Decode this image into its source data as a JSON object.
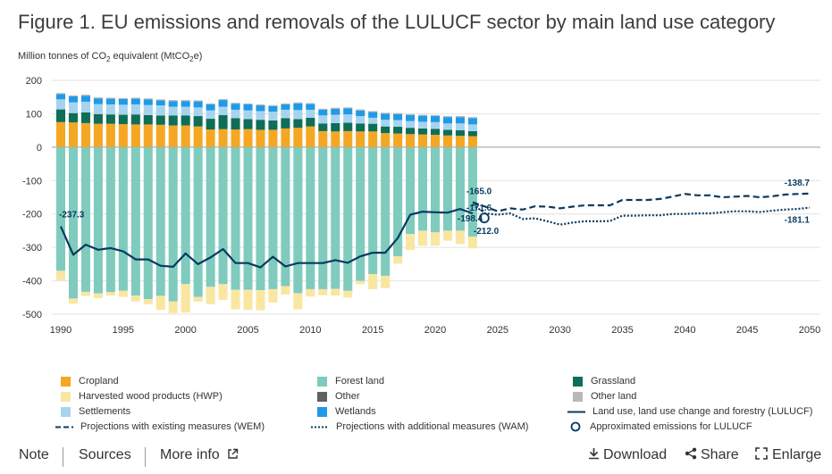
{
  "title": "Figure 1. EU emissions and removals of the LULUCF sector by main land use category",
  "y_axis_label": {
    "prefix": "Million tonnes of CO",
    "sub1": "2",
    "mid": " equivalent (MtCO",
    "sub2": "2",
    "suffix": "e)"
  },
  "colors": {
    "cropland": "#f5a623",
    "forest": "#7fcbbe",
    "grassland": "#0e6e58",
    "hwp": "#f9e6a0",
    "other": "#606060",
    "other_land": "#b8b8b8",
    "settlements": "#a6d4ef",
    "wetlands": "#1f9ae8",
    "line": "#0a3a5e",
    "grid": "#e2e2e2"
  },
  "chart_data": {
    "type": "bar",
    "title": "EU emissions and removals of the LULUCF sector by main land use category",
    "ylabel": "Million tonnes of CO2 equivalent (MtCO2e)",
    "ylim": [
      -500,
      200
    ],
    "yticks": [
      "200",
      "100",
      "0",
      "-100",
      "-200",
      "-300",
      "-400",
      "-500"
    ],
    "ytick_values": [
      200,
      100,
      0,
      -100,
      -200,
      -300,
      -400,
      -500
    ],
    "xlim": [
      1990,
      2050
    ],
    "xticks": [
      "1990",
      "1995",
      "2000",
      "2005",
      "2010",
      "2015",
      "2020",
      "2025",
      "2030",
      "2035",
      "2040",
      "2045",
      "2050"
    ],
    "xtick_values": [
      1990,
      1995,
      2000,
      2005,
      2010,
      2015,
      2020,
      2025,
      2030,
      2035,
      2040,
      2045,
      2050
    ],
    "years": [
      1990,
      1991,
      1992,
      1993,
      1994,
      1995,
      1996,
      1997,
      1998,
      1999,
      2000,
      2001,
      2002,
      2003,
      2004,
      2005,
      2006,
      2007,
      2008,
      2009,
      2010,
      2011,
      2012,
      2013,
      2014,
      2015,
      2016,
      2017,
      2018,
      2019,
      2020,
      2021,
      2022,
      2023
    ],
    "stacked_series": {
      "cropland": [
        75,
        74,
        72,
        70,
        70,
        69,
        68,
        68,
        67,
        65,
        65,
        62,
        53,
        54,
        53,
        54,
        52,
        52,
        56,
        58,
        62,
        48,
        47,
        48,
        47,
        47,
        42,
        41,
        39,
        38,
        37,
        35,
        34,
        33
      ],
      "grassland": [
        38,
        28,
        32,
        29,
        28,
        28,
        30,
        28,
        28,
        30,
        30,
        31,
        32,
        42,
        34,
        30,
        30,
        28,
        31,
        26,
        26,
        23,
        25,
        25,
        24,
        23,
        20,
        20,
        19,
        18,
        18,
        17,
        17,
        15
      ],
      "settlements": [
        30,
        32,
        32,
        30,
        30,
        30,
        30,
        30,
        30,
        26,
        26,
        26,
        25,
        25,
        25,
        26,
        26,
        26,
        25,
        27,
        24,
        24,
        25,
        25,
        22,
        18,
        20,
        20,
        20,
        20,
        20,
        19,
        20,
        20
      ],
      "wetlands": [
        16,
        18,
        18,
        17,
        17,
        17,
        17,
        17,
        15,
        17,
        17,
        18,
        18,
        20,
        18,
        18,
        17,
        17,
        16,
        20,
        17,
        17,
        18,
        18,
        17,
        17,
        18,
        18,
        18,
        18,
        18,
        19,
        19,
        19
      ],
      "other_land": [
        3,
        3,
        3,
        3,
        3,
        3,
        3,
        3,
        3,
        3,
        3,
        3,
        3,
        3,
        3,
        3,
        3,
        3,
        3,
        3,
        3,
        3,
        3,
        3,
        3,
        3,
        3,
        3,
        3,
        3,
        3,
        3,
        3,
        3
      ],
      "forest": [
        -370,
        -453,
        -433,
        -438,
        -434,
        -430,
        -444,
        -455,
        -445,
        -462,
        -410,
        -448,
        -418,
        -410,
        -427,
        -427,
        -428,
        -425,
        -416,
        -437,
        -425,
        -425,
        -424,
        -430,
        -400,
        -380,
        -385,
        -327,
        -260,
        -250,
        -255,
        -250,
        -250,
        -268
      ],
      "hwp": [
        -28,
        -15,
        -12,
        -14,
        -10,
        -18,
        -18,
        -15,
        -42,
        -35,
        -85,
        -14,
        -52,
        -47,
        -58,
        -60,
        -60,
        -40,
        -25,
        -48,
        -22,
        -18,
        -20,
        -20,
        -10,
        -45,
        -37,
        -22,
        -48,
        -45,
        -40,
        -30,
        -40,
        -35
      ]
    },
    "series": [
      {
        "name": "Land use, land use change and forestry (LULUCF)",
        "years": [
          1990,
          1991,
          1992,
          1993,
          1994,
          1995,
          1996,
          1997,
          1998,
          1999,
          2000,
          2001,
          2002,
          2003,
          2004,
          2005,
          2006,
          2007,
          2008,
          2009,
          2010,
          2011,
          2012,
          2013,
          2014,
          2015,
          2016,
          2017,
          2018,
          2019,
          2020,
          2021,
          2022,
          2023
        ],
        "values": [
          -237.3,
          -322,
          -292,
          -307,
          -302,
          -312,
          -336,
          -336,
          -355,
          -358,
          -318,
          -350,
          -330,
          -305,
          -347,
          -347,
          -360,
          -328,
          -357,
          -347,
          -347,
          -347,
          -338,
          -346,
          -327,
          -316,
          -316,
          -272,
          -202,
          -193,
          -195,
          -196,
          -185,
          -198.4
        ]
      },
      {
        "name": "Projections with existing measures (WEM)",
        "years": [
          2023,
          2024,
          2025,
          2026,
          2027,
          2028,
          2029,
          2030,
          2031,
          2032,
          2033,
          2034,
          2035,
          2036,
          2037,
          2038,
          2039,
          2040,
          2041,
          2042,
          2043,
          2044,
          2045,
          2046,
          2047,
          2048,
          2049,
          2050
        ],
        "values": [
          -165,
          -178,
          -192,
          -183,
          -187,
          -177,
          -178,
          -183,
          -178,
          -174,
          -174,
          -174,
          -158,
          -158,
          -158,
          -155,
          -148,
          -140,
          -144,
          -144,
          -150,
          -148,
          -146,
          -150,
          -147,
          -142,
          -140,
          -138.7
        ]
      },
      {
        "name": "Projections with additional measures (WAM)",
        "years": [
          2023,
          2024,
          2025,
          2026,
          2027,
          2028,
          2029,
          2030,
          2031,
          2032,
          2033,
          2034,
          2035,
          2036,
          2037,
          2038,
          2039,
          2040,
          2041,
          2042,
          2043,
          2044,
          2045,
          2046,
          2047,
          2048,
          2049,
          2050
        ],
        "values": [
          -171.6,
          -198,
          -202,
          -198,
          -215,
          -213,
          -222,
          -232,
          -226,
          -222,
          -222,
          -221,
          -205,
          -205,
          -204,
          -204,
          -200,
          -200,
          -198,
          -198,
          -195,
          -192,
          -192,
          -194,
          -190,
          -187,
          -185,
          -181.1
        ]
      },
      {
        "name": "Approximated emissions for LULUCF",
        "years": [
          2024
        ],
        "values": [
          -212.0
        ]
      }
    ],
    "annotations": [
      {
        "text": "-237.3",
        "year": 1990,
        "value": -237.3,
        "position": "above"
      },
      {
        "text": "-165.0",
        "year": 2023,
        "value": -165.0,
        "position": "above"
      },
      {
        "text": "-171.6",
        "year": 2023,
        "value": -171.6,
        "position": "above-below"
      },
      {
        "text": "-198.4",
        "year": 2023,
        "value": -198.4,
        "position": "left"
      },
      {
        "text": "-212.0",
        "year": 2024,
        "value": -212.0,
        "position": "below"
      },
      {
        "text": "-138.7",
        "year": 2050,
        "value": -138.7,
        "position": "above"
      },
      {
        "text": "-181.1",
        "year": 2050,
        "value": -181.1,
        "position": "below"
      }
    ]
  },
  "legend": {
    "cropland": "Cropland",
    "forest": "Forest land",
    "grassland": "Grassland",
    "hwp": "Harvested wood products (HWP)",
    "other": "Other",
    "other_land": "Other land",
    "settlements": "Settlements",
    "wetlands": "Wetlands",
    "lulucf": "Land use, land use change and forestry (LULUCF)",
    "wem": "Projections with existing measures (WEM)",
    "wam": "Projections with additional measures (WAM)",
    "approx": "Approximated emissions for LULUCF"
  },
  "footer": {
    "note": "Note",
    "sources": "Sources",
    "more_info": "More info",
    "download": "Download",
    "share": "Share",
    "enlarge": "Enlarge"
  }
}
